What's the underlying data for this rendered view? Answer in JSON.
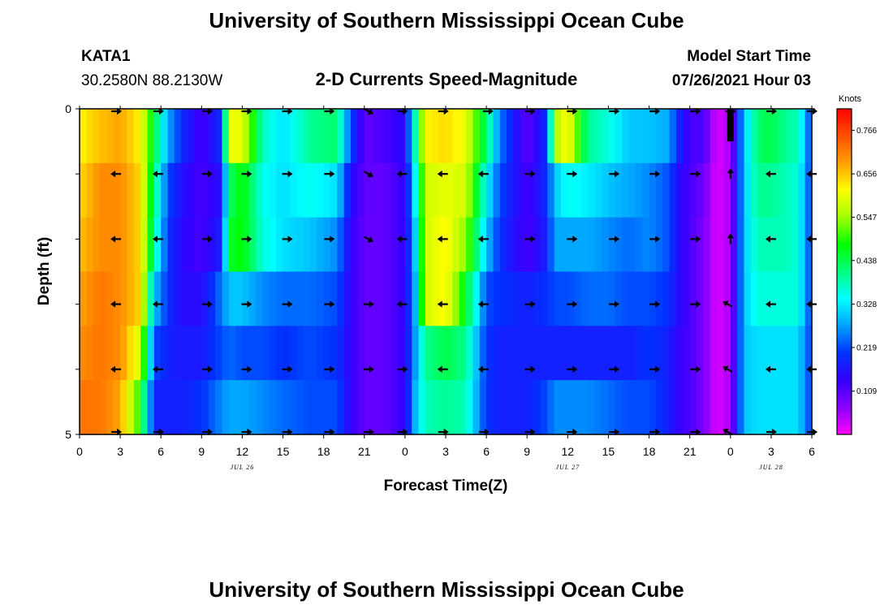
{
  "header": {
    "title_top": "University of Southern Mississippi Ocean Cube",
    "title_bottom": "University of Southern Mississippi Ocean Cube",
    "station": "KATA1",
    "coordinates": "30.2580N  88.2130W",
    "subtitle": "2-D Currents Speed-Magnitude",
    "model_label": "Model Start Time",
    "model_time": "07/26/2021 Hour 03"
  },
  "colors": {
    "stops": [
      "#ff00ff",
      "#8a00ff",
      "#3300ff",
      "#0033ff",
      "#00a0ff",
      "#00ffff",
      "#00ff80",
      "#00ff00",
      "#a0ff00",
      "#ffff00",
      "#ffa000",
      "#ff5000",
      "#ff0000"
    ],
    "arrow": "#000000",
    "frame": "#000000"
  },
  "chart_data": {
    "type": "heatmap",
    "title": "2-D Currents Speed-Magnitude",
    "xlabel": "Forecast Time(Z)",
    "ylabel": "Depth (ft)",
    "units": "Knots",
    "x_range": [
      0,
      54
    ],
    "y_range": [
      0,
      5
    ],
    "x_tick_values": [
      0,
      3,
      6,
      9,
      12,
      15,
      18,
      21,
      24,
      27,
      30,
      33,
      36,
      39,
      42,
      45,
      48,
      51,
      54
    ],
    "x_tick_labels": [
      "0",
      "3",
      "6",
      "9",
      "12",
      "15",
      "18",
      "21",
      "0",
      "3",
      "6",
      "9",
      "12",
      "15",
      "18",
      "21",
      "0",
      "3",
      "6"
    ],
    "y_tick_values": [
      0,
      1,
      2,
      3,
      4,
      5
    ],
    "y_tick_labels": [
      "0",
      "",
      "",
      "",
      "",
      "5"
    ],
    "date_labels": [
      {
        "hour": 12,
        "text": "JUL 26"
      },
      {
        "hour": 36,
        "text": "JUL 27"
      },
      {
        "hour": 51,
        "text": "JUL 28"
      }
    ],
    "colorbar": {
      "min": 0.0,
      "max": 0.82,
      "labels": [
        "0.766",
        "0.656",
        "0.547",
        "0.438",
        "0.328",
        "0.219",
        "0.109"
      ]
    },
    "speed_keyframes": {
      "hours": [
        0,
        1.5,
        3,
        4.5,
        5.5,
        6.5,
        7.5,
        9,
        10.5,
        11,
        12,
        13.5,
        15,
        17,
        19,
        20,
        21,
        22.5,
        24,
        24.8,
        25.5,
        27,
        28.5,
        30,
        31,
        33,
        34.5,
        35,
        36,
        37.5,
        39,
        40.5,
        42,
        43.5,
        44,
        45,
        46,
        47,
        48,
        49,
        50,
        51,
        52,
        53,
        54
      ],
      "layers": [
        [
          0.62,
          0.66,
          0.68,
          0.62,
          0.45,
          0.28,
          0.2,
          0.12,
          0.2,
          0.6,
          0.6,
          0.38,
          0.32,
          0.4,
          0.42,
          0.22,
          0.1,
          0.12,
          0.15,
          0.4,
          0.62,
          0.64,
          0.6,
          0.42,
          0.25,
          0.1,
          0.2,
          0.55,
          0.62,
          0.4,
          0.36,
          0.3,
          0.3,
          0.28,
          0.2,
          0.12,
          0.12,
          0.02,
          0.05,
          0.3,
          0.42,
          0.44,
          0.4,
          0.38,
          0.2
        ],
        [
          0.64,
          0.7,
          0.7,
          0.64,
          0.42,
          0.22,
          0.16,
          0.12,
          0.16,
          0.42,
          0.48,
          0.35,
          0.32,
          0.35,
          0.32,
          0.16,
          0.1,
          0.1,
          0.14,
          0.35,
          0.58,
          0.6,
          0.58,
          0.34,
          0.22,
          0.12,
          0.2,
          0.3,
          0.35,
          0.33,
          0.3,
          0.28,
          0.26,
          0.22,
          0.16,
          0.12,
          0.09,
          0.02,
          0.05,
          0.3,
          0.4,
          0.4,
          0.38,
          0.36,
          0.2
        ],
        [
          0.66,
          0.7,
          0.7,
          0.64,
          0.4,
          0.2,
          0.15,
          0.12,
          0.18,
          0.45,
          0.48,
          0.36,
          0.32,
          0.3,
          0.26,
          0.14,
          0.1,
          0.1,
          0.14,
          0.32,
          0.58,
          0.62,
          0.54,
          0.3,
          0.2,
          0.12,
          0.18,
          0.28,
          0.28,
          0.28,
          0.26,
          0.24,
          0.26,
          0.22,
          0.16,
          0.12,
          0.08,
          0.02,
          0.05,
          0.3,
          0.38,
          0.38,
          0.38,
          0.36,
          0.2
        ],
        [
          0.68,
          0.72,
          0.7,
          0.64,
          0.3,
          0.2,
          0.15,
          0.15,
          0.25,
          0.3,
          0.3,
          0.26,
          0.24,
          0.24,
          0.22,
          0.14,
          0.1,
          0.1,
          0.14,
          0.3,
          0.58,
          0.62,
          0.46,
          0.22,
          0.2,
          0.18,
          0.2,
          0.22,
          0.22,
          0.24,
          0.24,
          0.22,
          0.22,
          0.2,
          0.16,
          0.12,
          0.08,
          0.02,
          0.05,
          0.3,
          0.36,
          0.36,
          0.36,
          0.36,
          0.2
        ],
        [
          0.7,
          0.72,
          0.7,
          0.58,
          0.22,
          0.18,
          0.17,
          0.17,
          0.22,
          0.24,
          0.22,
          0.22,
          0.2,
          0.22,
          0.2,
          0.14,
          0.1,
          0.1,
          0.14,
          0.28,
          0.4,
          0.44,
          0.4,
          0.2,
          0.18,
          0.18,
          0.18,
          0.18,
          0.18,
          0.18,
          0.18,
          0.18,
          0.2,
          0.18,
          0.14,
          0.12,
          0.08,
          0.02,
          0.05,
          0.3,
          0.32,
          0.32,
          0.32,
          0.32,
          0.2
        ],
        [
          0.72,
          0.72,
          0.68,
          0.48,
          0.18,
          0.18,
          0.18,
          0.2,
          0.26,
          0.28,
          0.28,
          0.26,
          0.24,
          0.22,
          0.22,
          0.14,
          0.1,
          0.1,
          0.14,
          0.3,
          0.38,
          0.4,
          0.38,
          0.2,
          0.18,
          0.18,
          0.22,
          0.26,
          0.26,
          0.26,
          0.24,
          0.22,
          0.22,
          0.18,
          0.14,
          0.12,
          0.08,
          0.02,
          0.05,
          0.3,
          0.32,
          0.32,
          0.32,
          0.32,
          0.2
        ]
      ]
    },
    "vectors": {
      "depths": [
        0,
        1,
        2,
        3,
        4,
        5
      ],
      "rows": [
        [
          {
            "h": 2.7,
            "d": "E"
          },
          {
            "h": 5.8,
            "d": "E"
          },
          {
            "h": 9.4,
            "d": "E"
          },
          {
            "h": 12.3,
            "d": "E"
          },
          {
            "h": 15.3,
            "d": "E"
          },
          {
            "h": 18.4,
            "d": "E"
          },
          {
            "h": 21.3,
            "d": "SE"
          },
          {
            "h": 23.8,
            "d": "E"
          },
          {
            "h": 26.8,
            "d": "E"
          },
          {
            "h": 30.1,
            "d": "E"
          },
          {
            "h": 33.2,
            "d": "E"
          },
          {
            "h": 36.3,
            "d": "E"
          },
          {
            "h": 39.4,
            "d": "E"
          },
          {
            "h": 42.4,
            "d": "E"
          },
          {
            "h": 45.4,
            "d": "E"
          },
          {
            "h": 48.0,
            "d": "E"
          },
          {
            "h": 51.0,
            "d": "E"
          },
          {
            "h": 54.0,
            "d": "E"
          }
        ],
        [
          {
            "h": 2.7,
            "d": "W"
          },
          {
            "h": 5.8,
            "d": "W"
          },
          {
            "h": 9.4,
            "d": "E"
          },
          {
            "h": 12.3,
            "d": "E"
          },
          {
            "h": 15.3,
            "d": "E"
          },
          {
            "h": 18.4,
            "d": "E"
          },
          {
            "h": 21.3,
            "d": "SE"
          },
          {
            "h": 23.8,
            "d": "W"
          },
          {
            "h": 26.8,
            "d": "W"
          },
          {
            "h": 29.8,
            "d": "W"
          },
          {
            "h": 33.2,
            "d": "E"
          },
          {
            "h": 36.3,
            "d": "E"
          },
          {
            "h": 39.4,
            "d": "E"
          },
          {
            "h": 42.4,
            "d": "E"
          },
          {
            "h": 45.4,
            "d": "E"
          },
          {
            "h": 48.0,
            "d": "N"
          },
          {
            "h": 51.0,
            "d": "W"
          },
          {
            "h": 54.0,
            "d": "W"
          }
        ],
        [
          {
            "h": 2.7,
            "d": "W"
          },
          {
            "h": 5.8,
            "d": "W"
          },
          {
            "h": 9.4,
            "d": "E"
          },
          {
            "h": 12.3,
            "d": "E"
          },
          {
            "h": 15.3,
            "d": "E"
          },
          {
            "h": 18.4,
            "d": "E"
          },
          {
            "h": 21.3,
            "d": "SE"
          },
          {
            "h": 23.8,
            "d": "W"
          },
          {
            "h": 26.8,
            "d": "W"
          },
          {
            "h": 29.8,
            "d": "W"
          },
          {
            "h": 33.2,
            "d": "E"
          },
          {
            "h": 36.3,
            "d": "E"
          },
          {
            "h": 39.4,
            "d": "E"
          },
          {
            "h": 42.4,
            "d": "E"
          },
          {
            "h": 45.4,
            "d": "E"
          },
          {
            "h": 48.0,
            "d": "N"
          },
          {
            "h": 51.0,
            "d": "W"
          },
          {
            "h": 54.0,
            "d": "W"
          }
        ],
        [
          {
            "h": 2.7,
            "d": "W"
          },
          {
            "h": 5.8,
            "d": "W"
          },
          {
            "h": 9.4,
            "d": "E"
          },
          {
            "h": 12.3,
            "d": "E"
          },
          {
            "h": 15.3,
            "d": "E"
          },
          {
            "h": 18.4,
            "d": "E"
          },
          {
            "h": 21.3,
            "d": "E"
          },
          {
            "h": 23.8,
            "d": "W"
          },
          {
            "h": 26.8,
            "d": "W"
          },
          {
            "h": 29.8,
            "d": "W"
          },
          {
            "h": 33.2,
            "d": "E"
          },
          {
            "h": 36.3,
            "d": "E"
          },
          {
            "h": 39.4,
            "d": "E"
          },
          {
            "h": 42.4,
            "d": "E"
          },
          {
            "h": 45.4,
            "d": "E"
          },
          {
            "h": 47.8,
            "d": "NW"
          },
          {
            "h": 51.0,
            "d": "W"
          },
          {
            "h": 54.0,
            "d": "W"
          }
        ],
        [
          {
            "h": 2.7,
            "d": "W"
          },
          {
            "h": 5.8,
            "d": "W"
          },
          {
            "h": 9.4,
            "d": "E"
          },
          {
            "h": 12.3,
            "d": "E"
          },
          {
            "h": 15.3,
            "d": "E"
          },
          {
            "h": 18.4,
            "d": "E"
          },
          {
            "h": 21.3,
            "d": "E"
          },
          {
            "h": 23.8,
            "d": "E"
          },
          {
            "h": 26.8,
            "d": "W"
          },
          {
            "h": 29.8,
            "d": "W"
          },
          {
            "h": 33.2,
            "d": "E"
          },
          {
            "h": 36.3,
            "d": "E"
          },
          {
            "h": 39.4,
            "d": "E"
          },
          {
            "h": 42.4,
            "d": "E"
          },
          {
            "h": 45.4,
            "d": "E"
          },
          {
            "h": 47.8,
            "d": "NW"
          },
          {
            "h": 51.0,
            "d": "W"
          },
          {
            "h": 54.0,
            "d": "W"
          }
        ],
        [
          {
            "h": 2.7,
            "d": "E"
          },
          {
            "h": 5.8,
            "d": "E"
          },
          {
            "h": 9.4,
            "d": "E"
          },
          {
            "h": 12.3,
            "d": "E"
          },
          {
            "h": 15.3,
            "d": "E"
          },
          {
            "h": 18.4,
            "d": "E"
          },
          {
            "h": 21.3,
            "d": "E"
          },
          {
            "h": 23.8,
            "d": "E"
          },
          {
            "h": 26.8,
            "d": "E"
          },
          {
            "h": 29.8,
            "d": "E"
          },
          {
            "h": 33.2,
            "d": "E"
          },
          {
            "h": 36.3,
            "d": "E"
          },
          {
            "h": 39.4,
            "d": "E"
          },
          {
            "h": 42.4,
            "d": "E"
          },
          {
            "h": 45.4,
            "d": "E"
          },
          {
            "h": 47.8,
            "d": "NW"
          },
          {
            "h": 51.0,
            "d": "E"
          },
          {
            "h": 54.0,
            "d": "E"
          }
        ]
      ]
    },
    "bad_data_marker": {
      "hour": 48,
      "depth_from": 0,
      "depth_to": 0.5
    }
  }
}
